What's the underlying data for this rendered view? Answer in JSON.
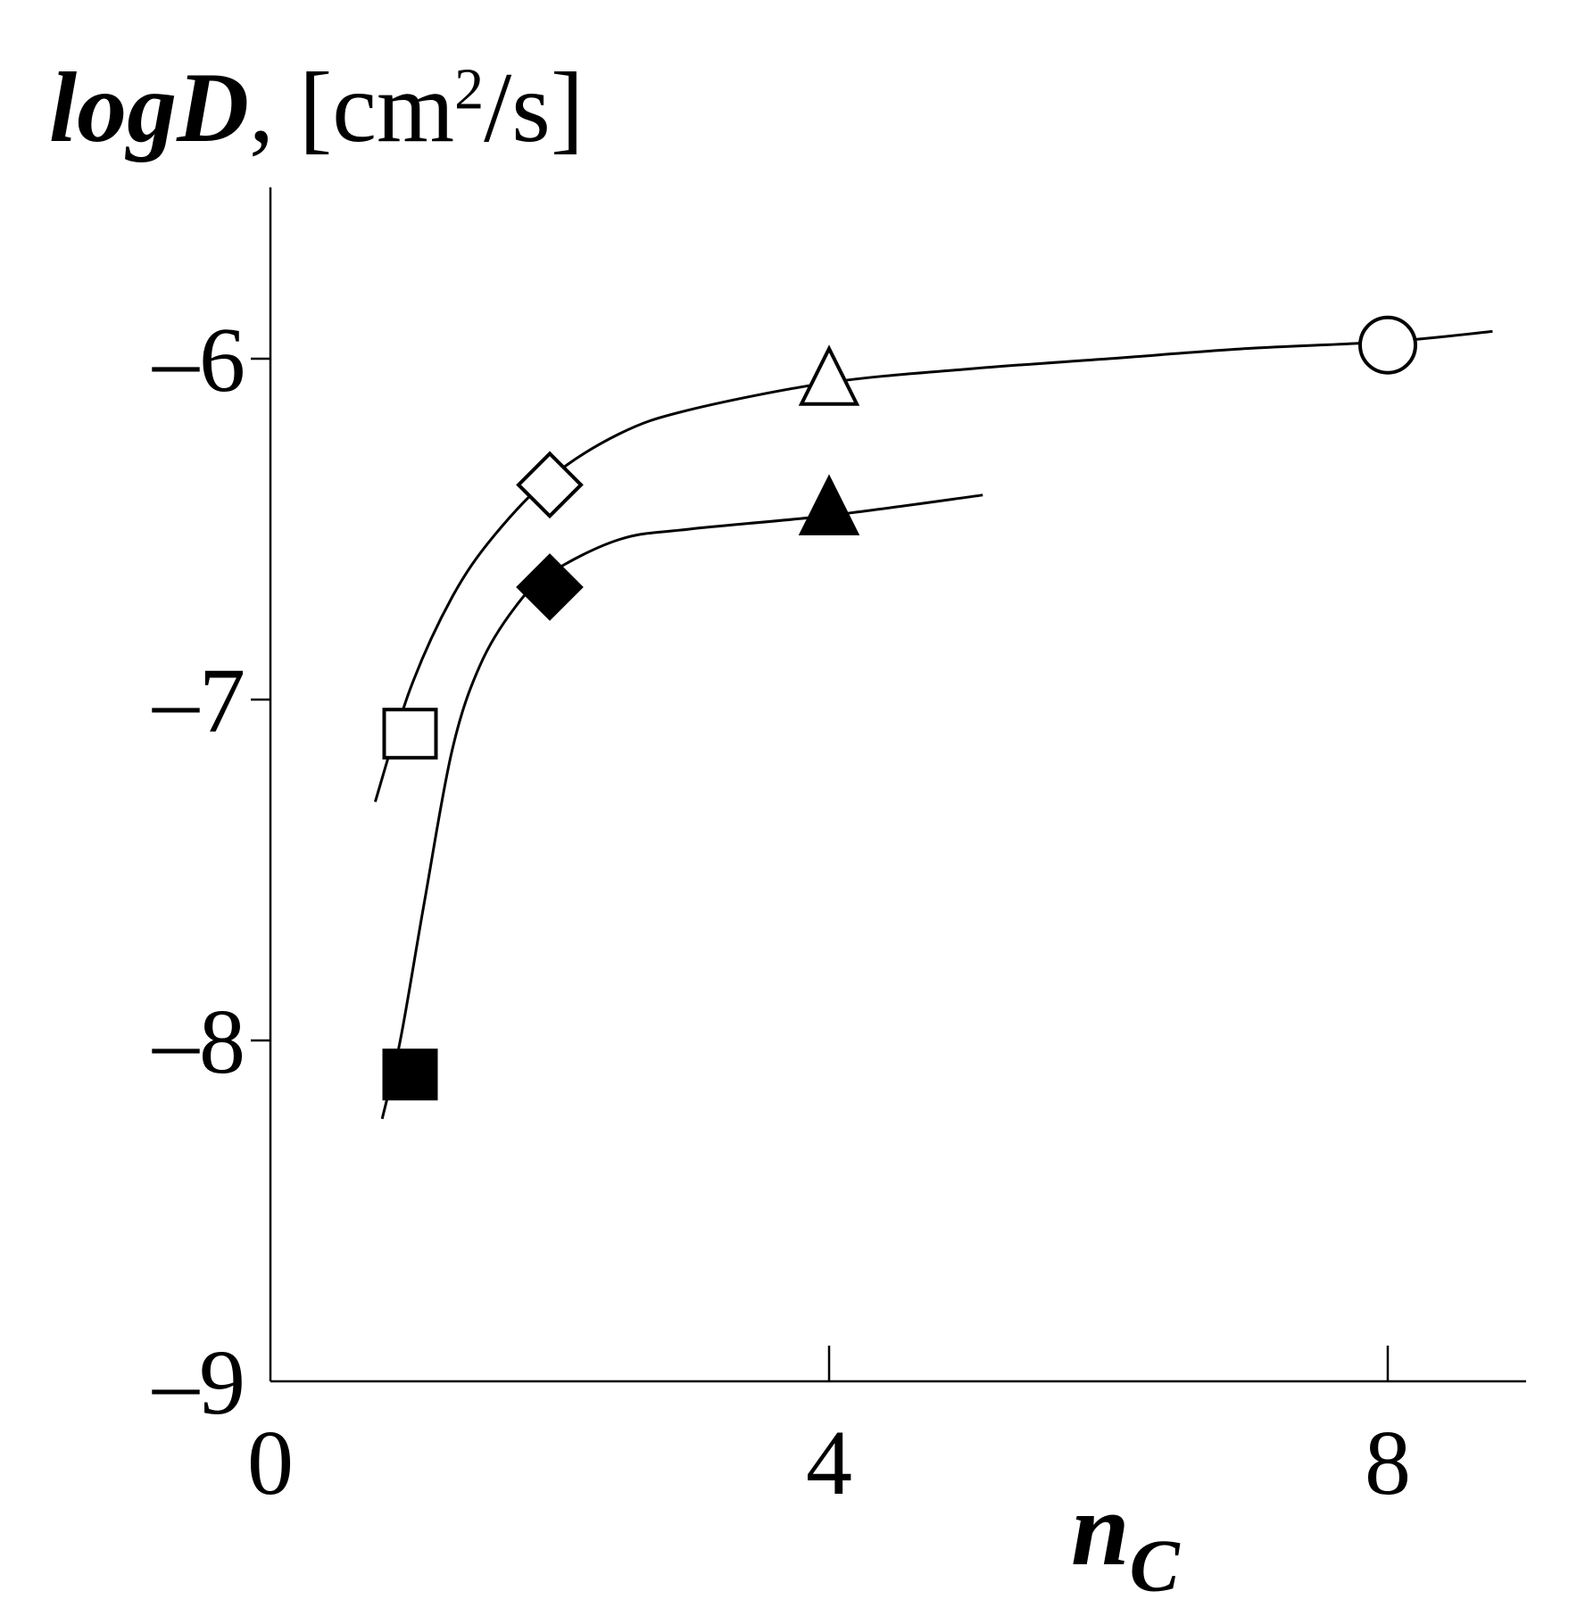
{
  "chart_data": {
    "type": "scatter",
    "ylabel": {
      "quantity": "logD",
      "unit_before_sup": ", [cm",
      "unit_sup": "2",
      "unit_after_sup": "/s]"
    },
    "xlabel": {
      "main": "n",
      "sub": "C"
    },
    "xlim": [
      0,
      9
    ],
    "ylim": [
      -9,
      -5.5
    ],
    "x_ticks": [
      0,
      4,
      8
    ],
    "x_tick_labels": [
      "0",
      "4",
      "8"
    ],
    "y_ticks": [
      -6,
      -7,
      -8,
      -9
    ],
    "y_tick_labels": [
      "–6",
      "–7",
      "–8",
      "–9"
    ],
    "grid": false,
    "legend": "none",
    "series": [
      {
        "fill": "open",
        "points": [
          {
            "x": 1,
            "y": -7.1,
            "marker": "square"
          },
          {
            "x": 2,
            "y": -6.37,
            "marker": "diamond"
          },
          {
            "x": 4,
            "y": -6.07,
            "marker": "triangle"
          },
          {
            "x": 8,
            "y": -5.96,
            "marker": "circle"
          }
        ],
        "curve": [
          [
            0.75,
            -7.3
          ],
          [
            1.0,
            -6.97
          ],
          [
            1.3,
            -6.7
          ],
          [
            1.6,
            -6.52
          ],
          [
            2.0,
            -6.35
          ],
          [
            2.5,
            -6.22
          ],
          [
            3.0,
            -6.15
          ],
          [
            4.0,
            -6.07
          ],
          [
            5.0,
            -6.03
          ],
          [
            6.0,
            -6.0
          ],
          [
            7.0,
            -5.97
          ],
          [
            8.0,
            -5.95
          ],
          [
            8.75,
            -5.92
          ]
        ]
      },
      {
        "fill": "filled",
        "points": [
          {
            "x": 1,
            "y": -8.1,
            "marker": "square"
          },
          {
            "x": 2,
            "y": -6.67,
            "marker": "diamond"
          },
          {
            "x": 4,
            "y": -6.45,
            "marker": "triangle"
          }
        ],
        "curve": [
          [
            0.8,
            -8.23
          ],
          [
            0.93,
            -8.0
          ],
          [
            1.1,
            -7.6
          ],
          [
            1.3,
            -7.15
          ],
          [
            1.5,
            -6.9
          ],
          [
            1.75,
            -6.73
          ],
          [
            2.0,
            -6.63
          ],
          [
            2.5,
            -6.53
          ],
          [
            3.0,
            -6.5
          ],
          [
            4.0,
            -6.46
          ],
          [
            5.1,
            -6.4
          ]
        ]
      }
    ],
    "colors": {
      "ink": "#000000",
      "open_fill": "#ffffff",
      "background": "#ffffff"
    }
  }
}
